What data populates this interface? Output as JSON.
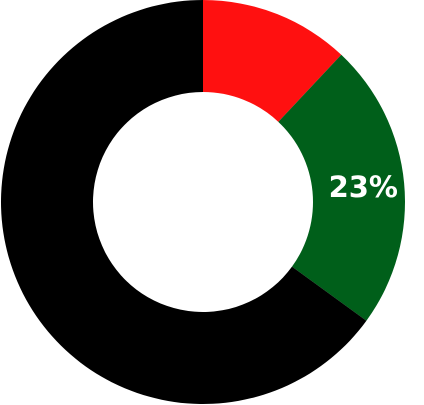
{
  "chart_data": {
    "type": "pie",
    "donut": true,
    "slices": [
      {
        "value": 12,
        "color": "#ff1010",
        "label": ""
      },
      {
        "value": 23,
        "color": "#005f1a",
        "label": "23%"
      },
      {
        "value": 65,
        "color": "#000000",
        "label": ""
      }
    ],
    "start": "12 o'clock",
    "direction": "clockwise"
  }
}
